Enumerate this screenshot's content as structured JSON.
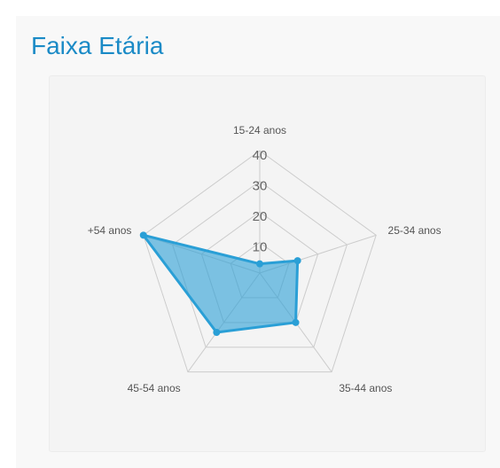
{
  "chart_data": {
    "type": "radar",
    "title": "Faixa Etária",
    "categories": [
      "15-24 anos",
      "25-34 anos",
      "35-44 anos",
      "45-54 anos",
      "+54 anos"
    ],
    "series": [
      {
        "name": null,
        "color": "#2a9fd6",
        "values": [
          3,
          13,
          20,
          24,
          40
        ]
      }
    ],
    "ylim": [
      0,
      40
    ],
    "yticks": [
      10,
      20,
      30,
      40
    ],
    "grid": true
  }
}
